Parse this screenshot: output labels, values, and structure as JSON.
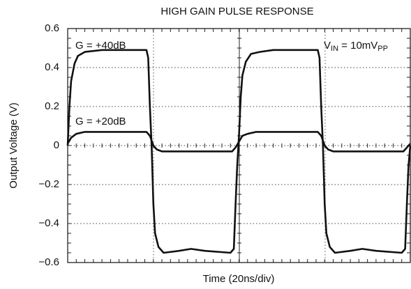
{
  "chart_data": {
    "type": "line",
    "title": "HIGH GAIN PULSE RESPONSE",
    "x_label": "Time (20ns/div)",
    "y_label": "Output Voltage (V)",
    "xlim": [
      0,
      200
    ],
    "ylim": [
      -0.6,
      0.6
    ],
    "yticks": [
      {
        "value": -0.6,
        "label": "−0.6"
      },
      {
        "value": -0.4,
        "label": "−0.4"
      },
      {
        "value": -0.2,
        "label": "−0.2"
      },
      0,
      0.2,
      0.4,
      0.6
    ],
    "grid": true,
    "series": [
      {
        "name": "G = +40dB",
        "color": "#111111",
        "x": [
          0,
          1,
          2,
          4,
          6,
          10,
          20,
          46,
          47,
          48,
          49,
          50,
          51,
          53,
          56,
          65,
          72,
          80,
          95,
          97,
          98,
          99,
          100,
          101,
          102,
          104,
          107,
          112,
          120,
          146,
          147,
          148,
          149,
          150,
          151,
          153,
          156,
          165,
          172,
          180,
          195,
          197,
          198,
          199,
          200
        ],
        "values": [
          0.0,
          0.2,
          0.33,
          0.42,
          0.46,
          0.48,
          0.49,
          0.49,
          0.45,
          0.2,
          0,
          -0.3,
          -0.45,
          -0.52,
          -0.55,
          -0.54,
          -0.53,
          -0.54,
          -0.55,
          -0.53,
          -0.3,
          -0.1,
          0.05,
          0.25,
          0.36,
          0.43,
          0.47,
          0.48,
          0.49,
          0.49,
          0.45,
          0.2,
          0,
          -0.3,
          -0.45,
          -0.52,
          -0.55,
          -0.54,
          -0.53,
          -0.54,
          -0.55,
          -0.53,
          -0.3,
          -0.1,
          0.0
        ]
      },
      {
        "name": "G = +20dB",
        "color": "#111111",
        "x": [
          0,
          2,
          5,
          10,
          46,
          48,
          50,
          52,
          55,
          96,
          98,
          100,
          102,
          105,
          110,
          146,
          148,
          150,
          152,
          155,
          196,
          198,
          200
        ],
        "values": [
          0.01,
          0.04,
          0.06,
          0.07,
          0.07,
          0.05,
          0.0,
          -0.02,
          -0.03,
          -0.03,
          -0.01,
          0.02,
          0.05,
          0.06,
          0.07,
          0.07,
          0.05,
          0,
          -0.02,
          -0.03,
          -0.03,
          -0.01,
          0.01
        ]
      }
    ],
    "annotations": [
      [
        "V",
        "IN",
        " = 10mV",
        "PP"
      ]
    ]
  }
}
